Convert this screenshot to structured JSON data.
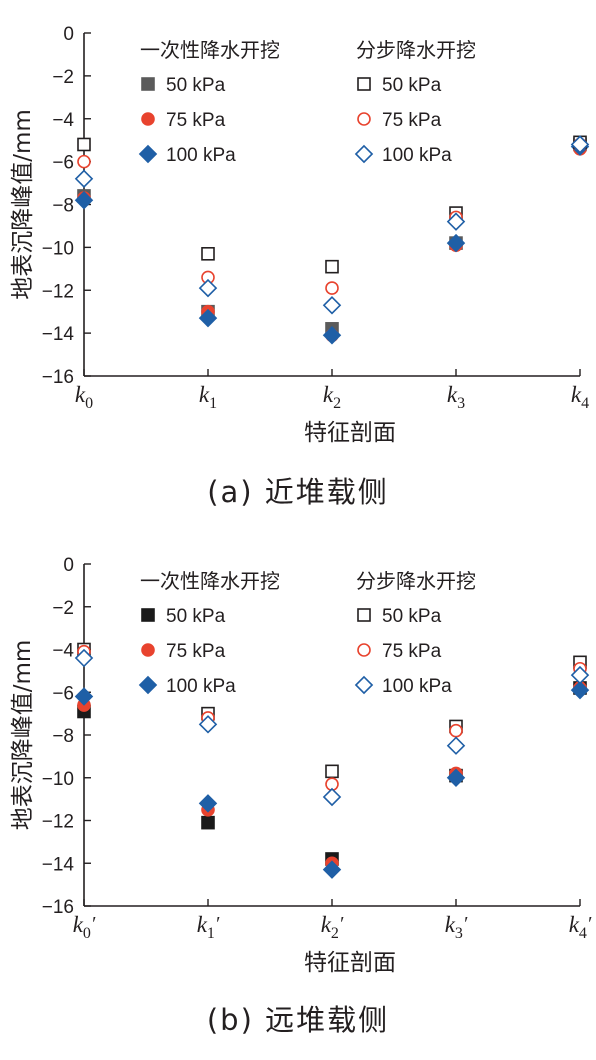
{
  "chart_data": [
    {
      "type": "scatter",
      "caption": "(a) 近堆载侧",
      "xlabel": "特征剖面",
      "ylabel": "地表沉降峰值/mm",
      "categories": [
        "k0",
        "k1",
        "k2",
        "k3",
        "k4"
      ],
      "ylim": [
        -16,
        0
      ],
      "yticks": [
        0,
        -2,
        -4,
        -6,
        -8,
        -10,
        -12,
        -14,
        -16
      ],
      "ytick_labels": [
        "0",
        "−2",
        "−4",
        "−6",
        "−8",
        "−10",
        "−12",
        "−14",
        "−16"
      ],
      "legend_groups": [
        "一次性降水开挖",
        "分步降水开挖"
      ],
      "series": [
        {
          "name": "50 kPa",
          "group": "一次性降水开挖",
          "marker": "square-filled",
          "color": "#5b5b5b",
          "values": [
            -7.6,
            -13.0,
            -13.8,
            -9.8,
            -5.2
          ]
        },
        {
          "name": "75 kPa",
          "group": "一次性降水开挖",
          "marker": "circle-filled",
          "color": "#e8432e",
          "values": [
            -7.7,
            -13.0,
            -14.1,
            -9.9,
            -5.4
          ]
        },
        {
          "name": "100 kPa",
          "group": "一次性降水开挖",
          "marker": "diamond-filled",
          "color": "#1f5fa6",
          "values": [
            -7.8,
            -13.3,
            -14.1,
            -9.8,
            -5.3
          ]
        },
        {
          "name": "50 kPa",
          "group": "分步降水开挖",
          "marker": "square-open",
          "color": "#231f20",
          "values": [
            -5.2,
            -10.3,
            -10.9,
            -8.4,
            -5.1
          ]
        },
        {
          "name": "75 kPa",
          "group": "分步降水开挖",
          "marker": "circle-open",
          "color": "#e8432e",
          "values": [
            -6.0,
            -11.4,
            -11.9,
            -8.6,
            -5.2
          ]
        },
        {
          "name": "100 kPa",
          "group": "分步降水开挖",
          "marker": "diamond-open",
          "color": "#1f5fa6",
          "values": [
            -6.8,
            -11.9,
            -12.7,
            -8.8,
            -5.2
          ]
        }
      ]
    },
    {
      "type": "scatter",
      "caption": "(b) 远堆载侧",
      "xlabel": "特征剖面",
      "ylabel": "地表沉降峰值/mm",
      "categories": [
        "k0′",
        "k1′",
        "k2′",
        "k3′",
        "k4′"
      ],
      "ylim": [
        -16,
        0
      ],
      "yticks": [
        0,
        -2,
        -4,
        -6,
        -8,
        -10,
        -12,
        -14,
        -16
      ],
      "ytick_labels": [
        "0",
        "−2",
        "−4",
        "−6",
        "−8",
        "−10",
        "−12",
        "−14",
        "−16"
      ],
      "legend_groups": [
        "一次性降水开挖",
        "分步降水开挖"
      ],
      "series": [
        {
          "name": "50 kPa",
          "group": "一次性降水开挖",
          "marker": "square-filled",
          "color": "#1a1a1a",
          "values": [
            -6.9,
            -12.1,
            -13.8,
            -9.9,
            -5.8
          ]
        },
        {
          "name": "75 kPa",
          "group": "一次性降水开挖",
          "marker": "circle-filled",
          "color": "#e8432e",
          "values": [
            -6.6,
            -11.5,
            -14.0,
            -9.8,
            -5.8
          ]
        },
        {
          "name": "100 kPa",
          "group": "一次性降水开挖",
          "marker": "diamond-filled",
          "color": "#1f5fa6",
          "values": [
            -6.2,
            -11.2,
            -14.3,
            -10.0,
            -5.9
          ]
        },
        {
          "name": "50 kPa",
          "group": "分步降水开挖",
          "marker": "square-open",
          "color": "#231f20",
          "values": [
            -4.0,
            -7.0,
            -9.7,
            -7.6,
            -4.6
          ]
        },
        {
          "name": "75 kPa",
          "group": "分步降水开挖",
          "marker": "circle-open",
          "color": "#e8432e",
          "values": [
            -4.1,
            -7.2,
            -10.3,
            -7.8,
            -4.9
          ]
        },
        {
          "name": "100 kPa",
          "group": "分步降水开挖",
          "marker": "diamond-open",
          "color": "#1f5fa6",
          "values": [
            -4.4,
            -7.5,
            -10.9,
            -8.5,
            -5.2
          ]
        }
      ]
    }
  ]
}
